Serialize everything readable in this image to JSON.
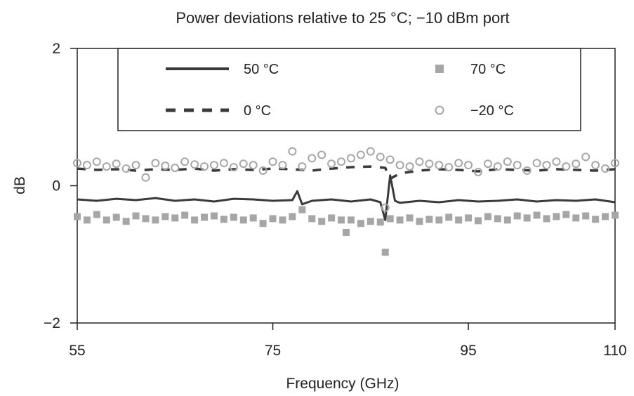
{
  "chart_data": {
    "type": "line",
    "title": "Power deviations relative to 25 °C; −10 dBm port",
    "xlabel": "Frequency (GHz)",
    "ylabel": "dB",
    "xlim": [
      55,
      110
    ],
    "ylim": [
      -2,
      2
    ],
    "x_ticks": [
      55,
      75,
      95,
      110
    ],
    "x_tick_labels": [
      "55",
      "75",
      "95",
      "110"
    ],
    "y_ticks": [
      -2,
      0,
      2
    ],
    "y_tick_labels": [
      "−2",
      "0",
      "2"
    ],
    "grid": false,
    "legend_position": "top",
    "series": [
      {
        "name": "50 °C",
        "style": "solid-line",
        "color": "#3a3a3a",
        "x": [
          55,
          57,
          59,
          61,
          63,
          65,
          67,
          69,
          71,
          73,
          75,
          77,
          77.5,
          78,
          79,
          81,
          83,
          85,
          86,
          86.5,
          87,
          87.5,
          88,
          90,
          92,
          94,
          96,
          98,
          100,
          102,
          104,
          106,
          108,
          110
        ],
        "values": [
          -0.2,
          -0.22,
          -0.19,
          -0.21,
          -0.18,
          -0.22,
          -0.2,
          -0.23,
          -0.19,
          -0.2,
          -0.22,
          -0.21,
          -0.08,
          -0.27,
          -0.22,
          -0.2,
          -0.23,
          -0.2,
          -0.24,
          -0.5,
          0.15,
          -0.22,
          -0.25,
          -0.22,
          -0.24,
          -0.21,
          -0.23,
          -0.22,
          -0.2,
          -0.23,
          -0.21,
          -0.22,
          -0.2,
          -0.24
        ]
      },
      {
        "name": "0 °C",
        "style": "dashed-line",
        "color": "#3a3a3a",
        "x": [
          55,
          57,
          59,
          61,
          63,
          65,
          67,
          69,
          71,
          73,
          75,
          77,
          79,
          81,
          83,
          85,
          86.5,
          87,
          88,
          90,
          92,
          94,
          96,
          98,
          100,
          102,
          104,
          106,
          108,
          110
        ],
        "values": [
          0.25,
          0.23,
          0.24,
          0.22,
          0.24,
          0.23,
          0.25,
          0.22,
          0.24,
          0.23,
          0.25,
          0.24,
          0.22,
          0.25,
          0.27,
          0.28,
          0.26,
          0.1,
          0.18,
          0.22,
          0.24,
          0.23,
          0.21,
          0.24,
          0.23,
          0.22,
          0.24,
          0.23,
          0.22,
          0.24
        ]
      },
      {
        "name": "70 °C",
        "style": "filled-square",
        "color": "#a6a6a6",
        "x": [
          55,
          56,
          57,
          58,
          59,
          60,
          61,
          62,
          63,
          64,
          65,
          66,
          67,
          68,
          69,
          70,
          71,
          72,
          73,
          74,
          75,
          76,
          77,
          78,
          79,
          80,
          81,
          82,
          82.5,
          83,
          84,
          85,
          86,
          86.5,
          87,
          88,
          89,
          90,
          91,
          92,
          93,
          94,
          95,
          96,
          97,
          98,
          99,
          100,
          101,
          102,
          103,
          104,
          105,
          106,
          107,
          108,
          109,
          110
        ],
        "values": [
          -0.45,
          -0.5,
          -0.42,
          -0.5,
          -0.46,
          -0.52,
          -0.44,
          -0.48,
          -0.5,
          -0.45,
          -0.47,
          -0.43,
          -0.5,
          -0.46,
          -0.44,
          -0.49,
          -0.46,
          -0.5,
          -0.47,
          -0.55,
          -0.48,
          -0.5,
          -0.45,
          -0.35,
          -0.48,
          -0.52,
          -0.47,
          -0.5,
          -0.68,
          -0.5,
          -0.55,
          -0.52,
          -0.53,
          -0.97,
          -0.48,
          -0.5,
          -0.47,
          -0.52,
          -0.49,
          -0.5,
          -0.46,
          -0.5,
          -0.47,
          -0.51,
          -0.45,
          -0.48,
          -0.5,
          -0.44,
          -0.47,
          -0.43,
          -0.48,
          -0.45,
          -0.42,
          -0.47,
          -0.44,
          -0.49,
          -0.45,
          -0.43
        ]
      },
      {
        "name": "−20 °C",
        "style": "open-circle",
        "color": "#a6a6a6",
        "x": [
          55,
          56,
          57,
          58,
          59,
          60,
          61,
          62,
          63,
          64,
          65,
          66,
          67,
          68,
          69,
          70,
          71,
          72,
          73,
          74,
          75,
          76,
          77,
          78,
          79,
          80,
          81,
          82,
          83,
          84,
          85,
          86,
          86.5,
          87,
          88,
          89,
          90,
          91,
          92,
          93,
          94,
          95,
          96,
          97,
          98,
          99,
          100,
          101,
          102,
          103,
          104,
          105,
          106,
          107,
          108,
          109,
          110
        ],
        "values": [
          0.33,
          0.3,
          0.35,
          0.28,
          0.32,
          0.25,
          0.3,
          0.12,
          0.33,
          0.29,
          0.26,
          0.35,
          0.31,
          0.28,
          0.3,
          0.33,
          0.27,
          0.32,
          0.3,
          0.22,
          0.35,
          0.3,
          0.5,
          0.28,
          0.4,
          0.45,
          0.32,
          0.35,
          0.4,
          0.45,
          0.5,
          0.42,
          -0.32,
          0.38,
          0.3,
          0.28,
          0.35,
          0.32,
          0.3,
          0.27,
          0.33,
          0.3,
          0.2,
          0.32,
          0.28,
          0.35,
          0.3,
          0.22,
          0.33,
          0.3,
          0.35,
          0.28,
          0.32,
          0.42,
          0.3,
          0.25,
          0.33
        ]
      }
    ]
  }
}
